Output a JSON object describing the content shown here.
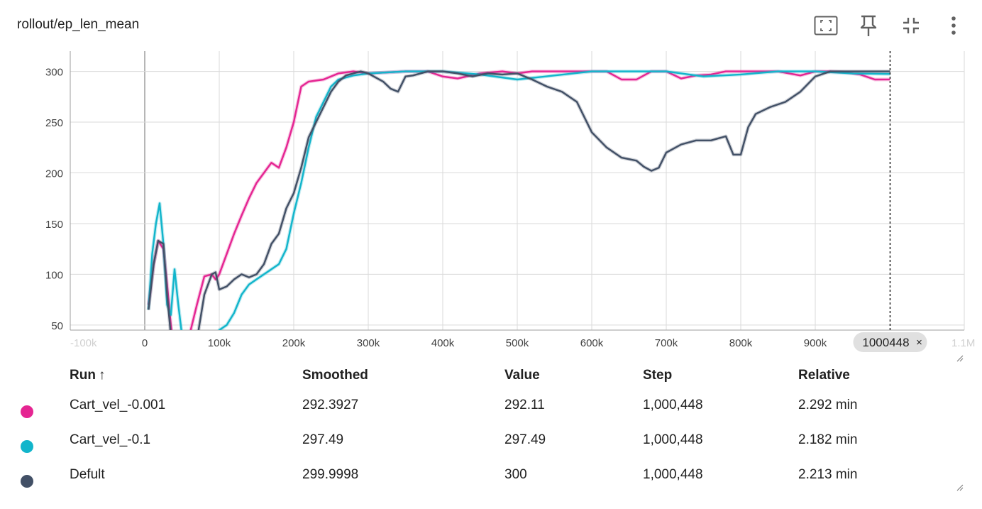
{
  "card": {
    "title": "rollout/ep_len_mean",
    "tools": [
      "fit-domain-icon",
      "pin-icon",
      "collapse-icon",
      "more-vert-icon"
    ]
  },
  "colors": {
    "Cart_vel_-0.001": "#e52592",
    "Cart_vel_-0.1": "#12b5cb",
    "Defult": "#425066"
  },
  "chart_data": {
    "type": "line",
    "xlim": [
      -100000,
      1100000
    ],
    "ylim": [
      45,
      320
    ],
    "x_ticks": [
      -100000,
      0,
      100000,
      200000,
      300000,
      400000,
      500000,
      600000,
      700000,
      800000,
      900000,
      1000000,
      1100000
    ],
    "x_tick_labels": [
      "-100k",
      "0",
      "100k",
      "200k",
      "300k",
      "400k",
      "500k",
      "600k",
      "700k",
      "800k",
      "900k",
      "1000448",
      "1.1M"
    ],
    "y_ticks": [
      50,
      100,
      150,
      200,
      250,
      300
    ],
    "y_tick_labels": [
      "50",
      "100",
      "150",
      "200",
      "250",
      "300"
    ],
    "grid": true,
    "hover_step": 1000448,
    "hover_step_label": "1000448",
    "series": [
      {
        "name": "Cart_vel_-0.001",
        "x": [
          5000,
          12000,
          18000,
          25000,
          30000,
          35000,
          40000,
          55000,
          60000,
          70000,
          80000,
          90000,
          95000,
          100000,
          110000,
          120000,
          130000,
          140000,
          150000,
          160000,
          170000,
          180000,
          190000,
          200000,
          210000,
          220000,
          240000,
          260000,
          280000,
          300000,
          350000,
          380000,
          400000,
          420000,
          450000,
          480000,
          500000,
          520000,
          540000,
          560000,
          600000,
          620000,
          640000,
          660000,
          680000,
          700000,
          720000,
          740000,
          760000,
          780000,
          800000,
          850000,
          880000,
          900000,
          920000,
          940000,
          960000,
          980000,
          1000448
        ],
        "y": [
          70,
          110,
          133,
          125,
          90,
          50,
          20,
          20,
          40,
          70,
          98,
          100,
          95,
          100,
          120,
          140,
          158,
          175,
          190,
          200,
          210,
          205,
          225,
          250,
          285,
          290,
          292,
          298,
          300,
          298,
          300,
          300,
          295,
          293,
          298,
          300,
          298,
          300,
          300,
          300,
          300,
          300,
          292,
          292,
          300,
          300,
          293,
          296,
          297,
          300,
          300,
          300,
          296,
          300,
          300,
          299,
          297,
          292,
          292.11
        ]
      },
      {
        "name": "Cart_vel_-0.1",
        "x": [
          5000,
          10000,
          15000,
          20000,
          25000,
          30000,
          35000,
          40000,
          45000,
          50000,
          55000,
          70000,
          90000,
          100000,
          110000,
          120000,
          130000,
          140000,
          150000,
          160000,
          170000,
          180000,
          190000,
          200000,
          210000,
          220000,
          230000,
          240000,
          250000,
          260000,
          280000,
          300000,
          350000,
          400000,
          450000,
          500000,
          600000,
          700000,
          750000,
          800000,
          850000,
          900000,
          950000,
          1000448
        ],
        "y": [
          65,
          120,
          150,
          170,
          130,
          70,
          60,
          105,
          70,
          40,
          20,
          20,
          30,
          45,
          50,
          62,
          80,
          90,
          95,
          100,
          105,
          110,
          125,
          160,
          190,
          225,
          255,
          270,
          285,
          292,
          296,
          298,
          300,
          300,
          297,
          292,
          300,
          300,
          295,
          297,
          300,
          300,
          298,
          297.49
        ]
      },
      {
        "name": "Defult",
        "x": [
          5000,
          12000,
          18000,
          25000,
          30000,
          35000,
          40000,
          50000,
          60000,
          70000,
          80000,
          90000,
          95000,
          100000,
          110000,
          120000,
          130000,
          140000,
          150000,
          160000,
          170000,
          180000,
          190000,
          200000,
          210000,
          220000,
          230000,
          240000,
          250000,
          260000,
          270000,
          280000,
          290000,
          300000,
          320000,
          330000,
          340000,
          350000,
          360000,
          380000,
          400000,
          420000,
          440000,
          460000,
          480000,
          500000,
          520000,
          540000,
          560000,
          580000,
          600000,
          620000,
          640000,
          660000,
          670000,
          680000,
          690000,
          700000,
          720000,
          740000,
          760000,
          780000,
          790000,
          800000,
          810000,
          820000,
          840000,
          860000,
          880000,
          900000,
          920000,
          940000,
          960000,
          980000,
          1000448
        ],
        "y": [
          65,
          110,
          133,
          130,
          80,
          40,
          10,
          20,
          30,
          35,
          80,
          100,
          102,
          85,
          88,
          95,
          100,
          97,
          100,
          110,
          130,
          140,
          165,
          180,
          205,
          235,
          250,
          265,
          280,
          290,
          296,
          298,
          300,
          298,
          290,
          283,
          280,
          295,
          296,
          300,
          300,
          298,
          295,
          298,
          297,
          298,
          292,
          285,
          280,
          270,
          240,
          225,
          215,
          212,
          206,
          202,
          205,
          220,
          228,
          232,
          232,
          236,
          218,
          218,
          245,
          258,
          265,
          270,
          280,
          295,
          300,
          300,
          300,
          300,
          300
        ]
      }
    ]
  },
  "table": {
    "headers": {
      "run": "Run",
      "sort_arrow": "↑",
      "smoothed": "Smoothed",
      "value": "Value",
      "step": "Step",
      "relative": "Relative"
    },
    "rows": [
      {
        "run": "Cart_vel_-0.001",
        "smoothed": "292.3927",
        "value": "292.11",
        "step": "1,000,448",
        "relative": "2.292 min",
        "color": "#e52592"
      },
      {
        "run": "Cart_vel_-0.1",
        "smoothed": "297.49",
        "value": "297.49",
        "step": "1,000,448",
        "relative": "2.182 min",
        "color": "#12b5cb"
      },
      {
        "run": "Defult",
        "smoothed": "299.9998",
        "value": "300",
        "step": "1,000,448",
        "relative": "2.213 min",
        "color": "#425066"
      }
    ]
  }
}
